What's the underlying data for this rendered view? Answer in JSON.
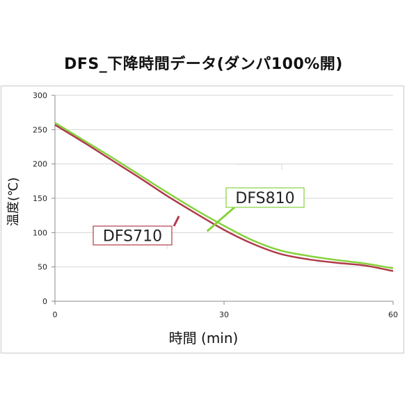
{
  "chart_data": {
    "type": "line",
    "title": "DFS_下降時間データ(ダンパ100%開)",
    "xlabel": "時間 (min)",
    "ylabel": "温度(℃)",
    "xlim": [
      0,
      60
    ],
    "ylim": [
      0,
      300
    ],
    "xticks": [
      0,
      30,
      60
    ],
    "yticks": [
      0,
      50,
      100,
      150,
      200,
      250,
      300
    ],
    "grid": "horizontal",
    "series": [
      {
        "name": "DFS810",
        "color": "#86d23c",
        "x": [
          0,
          5,
          10,
          15,
          20,
          25,
          30,
          35,
          40,
          45,
          50,
          55,
          60
        ],
        "y": [
          260,
          235,
          210,
          184,
          158,
          133,
          110,
          89,
          74,
          66,
          60,
          55,
          48
        ]
      },
      {
        "name": "DFS710",
        "color": "#b03a4a",
        "x": [
          0,
          5,
          10,
          15,
          20,
          25,
          30,
          35,
          40,
          45,
          50,
          55,
          60
        ],
        "y": [
          257,
          232,
          206,
          180,
          153,
          128,
          104,
          84,
          69,
          61,
          56,
          52,
          44
        ]
      }
    ],
    "annotations": [
      {
        "text": "DFS810",
        "series": "DFS810",
        "x": 27,
        "y": 102
      },
      {
        "text": "DFS710",
        "series": "DFS710",
        "x": 22,
        "y": 124
      }
    ]
  }
}
